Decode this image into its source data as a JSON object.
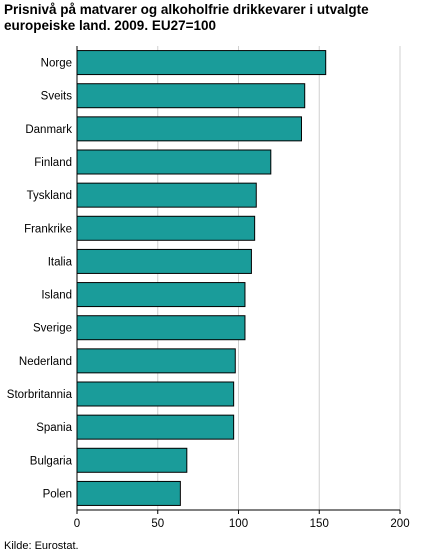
{
  "chart_data": {
    "type": "bar",
    "orientation": "horizontal",
    "title": "Prisnivå på matvarer og alkoholfrie drikkevarer i utvalgte europeiske land. 2009. EU27=100",
    "categories": [
      "Norge",
      "Sveits",
      "Danmark",
      "Finland",
      "Tyskland",
      "Frankrike",
      "Italia",
      "Island",
      "Sverige",
      "Nederland",
      "Storbritannia",
      "Spania",
      "Bulgaria",
      "Polen"
    ],
    "values": [
      154,
      141,
      139,
      120,
      111,
      110,
      108,
      104,
      104,
      98,
      97,
      97,
      68,
      64
    ],
    "xlim": [
      0,
      200
    ],
    "xticks": [
      "0",
      "50",
      "100",
      "150",
      "200"
    ],
    "grid": true,
    "bar_color": "#1a9c9a",
    "bar_edge_color": "#000000",
    "grid_color": "#d0d0d0"
  },
  "source": "Kilde: Eurostat."
}
